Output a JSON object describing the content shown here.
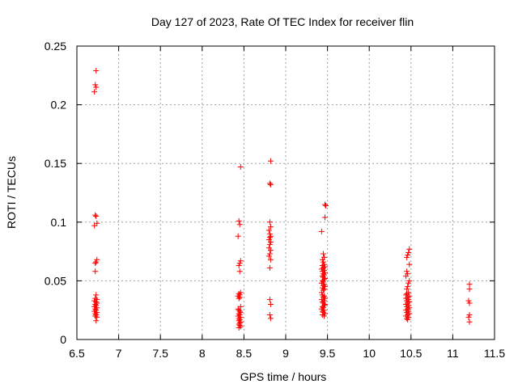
{
  "chart_data": {
    "type": "scatter",
    "title": "Day 127 of 2023, Rate Of TEC Index for receiver flin",
    "xlabel": "GPS time / hours",
    "ylabel": "ROTI / TECUs",
    "xlim": [
      6.5,
      11.5
    ],
    "ylim": [
      0,
      0.25
    ],
    "x_ticks": [
      "6.5",
      "7",
      "7.5",
      "8",
      "8.5",
      "9",
      "9.5",
      "10",
      "10.5",
      "11",
      "11.5"
    ],
    "y_ticks": [
      "0",
      "0.05",
      "0.1",
      "0.15",
      "0.2",
      "0.25"
    ],
    "grid": true,
    "marker": "+",
    "series": [
      {
        "name": "ROTI",
        "color": "#ff0000",
        "points": [
          [
            6.73,
            0.229
          ],
          [
            6.72,
            0.217
          ],
          [
            6.73,
            0.215
          ],
          [
            6.71,
            0.211
          ],
          [
            6.72,
            0.106
          ],
          [
            6.73,
            0.105
          ],
          [
            6.74,
            0.099
          ],
          [
            6.71,
            0.097
          ],
          [
            6.74,
            0.068
          ],
          [
            6.73,
            0.066
          ],
          [
            6.72,
            0.065
          ],
          [
            6.72,
            0.058
          ],
          [
            6.73,
            0.038
          ],
          [
            6.72,
            0.035
          ],
          [
            6.74,
            0.034
          ],
          [
            6.71,
            0.033
          ],
          [
            6.73,
            0.032
          ],
          [
            6.74,
            0.031
          ],
          [
            6.72,
            0.03
          ],
          [
            6.73,
            0.029
          ],
          [
            6.71,
            0.028
          ],
          [
            6.74,
            0.027
          ],
          [
            6.72,
            0.026
          ],
          [
            6.73,
            0.025
          ],
          [
            6.71,
            0.024
          ],
          [
            6.74,
            0.023
          ],
          [
            6.72,
            0.022
          ],
          [
            6.73,
            0.021
          ],
          [
            6.72,
            0.02
          ],
          [
            6.74,
            0.019
          ],
          [
            6.73,
            0.016
          ],
          [
            8.46,
            0.147
          ],
          [
            8.44,
            0.101
          ],
          [
            8.45,
            0.098
          ],
          [
            8.43,
            0.088
          ],
          [
            8.46,
            0.067
          ],
          [
            8.45,
            0.065
          ],
          [
            8.44,
            0.063
          ],
          [
            8.45,
            0.058
          ],
          [
            8.46,
            0.04
          ],
          [
            8.44,
            0.039
          ],
          [
            8.45,
            0.038
          ],
          [
            8.43,
            0.037
          ],
          [
            8.45,
            0.036
          ],
          [
            8.44,
            0.035
          ],
          [
            8.46,
            0.028
          ],
          [
            8.43,
            0.026
          ],
          [
            8.44,
            0.025
          ],
          [
            8.45,
            0.024
          ],
          [
            8.46,
            0.023
          ],
          [
            8.44,
            0.022
          ],
          [
            8.45,
            0.021
          ],
          [
            8.43,
            0.02
          ],
          [
            8.46,
            0.019
          ],
          [
            8.44,
            0.018
          ],
          [
            8.45,
            0.017
          ],
          [
            8.44,
            0.016
          ],
          [
            8.46,
            0.015
          ],
          [
            8.45,
            0.014
          ],
          [
            8.44,
            0.013
          ],
          [
            8.45,
            0.012
          ],
          [
            8.46,
            0.011
          ],
          [
            8.44,
            0.01
          ],
          [
            8.82,
            0.152
          ],
          [
            8.81,
            0.133
          ],
          [
            8.82,
            0.132
          ],
          [
            8.81,
            0.1
          ],
          [
            8.82,
            0.096
          ],
          [
            8.8,
            0.093
          ],
          [
            8.81,
            0.09
          ],
          [
            8.82,
            0.088
          ],
          [
            8.81,
            0.087
          ],
          [
            8.8,
            0.085
          ],
          [
            8.82,
            0.083
          ],
          [
            8.81,
            0.081
          ],
          [
            8.8,
            0.078
          ],
          [
            8.82,
            0.076
          ],
          [
            8.81,
            0.073
          ],
          [
            8.8,
            0.071
          ],
          [
            8.82,
            0.068
          ],
          [
            8.81,
            0.061
          ],
          [
            8.81,
            0.034
          ],
          [
            8.82,
            0.03
          ],
          [
            8.81,
            0.021
          ],
          [
            8.82,
            0.018
          ],
          [
            9.47,
            0.115
          ],
          [
            9.48,
            0.114
          ],
          [
            9.47,
            0.104
          ],
          [
            9.43,
            0.092
          ],
          [
            9.45,
            0.073
          ],
          [
            9.46,
            0.07
          ],
          [
            9.44,
            0.068
          ],
          [
            9.45,
            0.066
          ],
          [
            9.46,
            0.064
          ],
          [
            9.44,
            0.063
          ],
          [
            9.47,
            0.062
          ],
          [
            9.45,
            0.061
          ],
          [
            9.43,
            0.06
          ],
          [
            9.46,
            0.059
          ],
          [
            9.44,
            0.058
          ],
          [
            9.47,
            0.057
          ],
          [
            9.45,
            0.056
          ],
          [
            9.46,
            0.055
          ],
          [
            9.44,
            0.054
          ],
          [
            9.45,
            0.053
          ],
          [
            9.47,
            0.052
          ],
          [
            9.46,
            0.051
          ],
          [
            9.44,
            0.05
          ],
          [
            9.45,
            0.049
          ],
          [
            9.43,
            0.048
          ],
          [
            9.46,
            0.047
          ],
          [
            9.45,
            0.046
          ],
          [
            9.47,
            0.045
          ],
          [
            9.44,
            0.044
          ],
          [
            9.46,
            0.043
          ],
          [
            9.45,
            0.042
          ],
          [
            9.43,
            0.04
          ],
          [
            9.44,
            0.038
          ],
          [
            9.46,
            0.037
          ],
          [
            9.45,
            0.036
          ],
          [
            9.47,
            0.035
          ],
          [
            9.43,
            0.034
          ],
          [
            9.46,
            0.033
          ],
          [
            9.44,
            0.032
          ],
          [
            9.45,
            0.031
          ],
          [
            9.47,
            0.03
          ],
          [
            9.46,
            0.029
          ],
          [
            9.44,
            0.028
          ],
          [
            9.45,
            0.027
          ],
          [
            9.43,
            0.026
          ],
          [
            9.46,
            0.025
          ],
          [
            9.44,
            0.024
          ],
          [
            9.45,
            0.023
          ],
          [
            9.47,
            0.022
          ],
          [
            9.44,
            0.021
          ],
          [
            9.46,
            0.02
          ],
          [
            10.48,
            0.077
          ],
          [
            10.47,
            0.074
          ],
          [
            10.46,
            0.072
          ],
          [
            10.45,
            0.07
          ],
          [
            10.48,
            0.064
          ],
          [
            10.45,
            0.058
          ],
          [
            10.46,
            0.056
          ],
          [
            10.44,
            0.054
          ],
          [
            10.48,
            0.05
          ],
          [
            10.47,
            0.048
          ],
          [
            10.46,
            0.045
          ],
          [
            10.45,
            0.043
          ],
          [
            10.47,
            0.04
          ],
          [
            10.45,
            0.039
          ],
          [
            10.44,
            0.038
          ],
          [
            10.48,
            0.037
          ],
          [
            10.46,
            0.036
          ],
          [
            10.44,
            0.035
          ],
          [
            10.47,
            0.034
          ],
          [
            10.45,
            0.033
          ],
          [
            10.48,
            0.032
          ],
          [
            10.46,
            0.031
          ],
          [
            10.44,
            0.03
          ],
          [
            10.47,
            0.029
          ],
          [
            10.45,
            0.028
          ],
          [
            10.48,
            0.027
          ],
          [
            10.46,
            0.026
          ],
          [
            10.44,
            0.025
          ],
          [
            10.47,
            0.024
          ],
          [
            10.45,
            0.023
          ],
          [
            10.48,
            0.022
          ],
          [
            10.46,
            0.021
          ],
          [
            10.44,
            0.02
          ],
          [
            10.47,
            0.019
          ],
          [
            10.45,
            0.018
          ],
          [
            10.46,
            0.017
          ],
          [
            11.2,
            0.047
          ],
          [
            11.2,
            0.043
          ],
          [
            11.19,
            0.033
          ],
          [
            11.2,
            0.031
          ],
          [
            11.2,
            0.021
          ],
          [
            11.19,
            0.019
          ],
          [
            11.2,
            0.015
          ]
        ]
      }
    ]
  }
}
